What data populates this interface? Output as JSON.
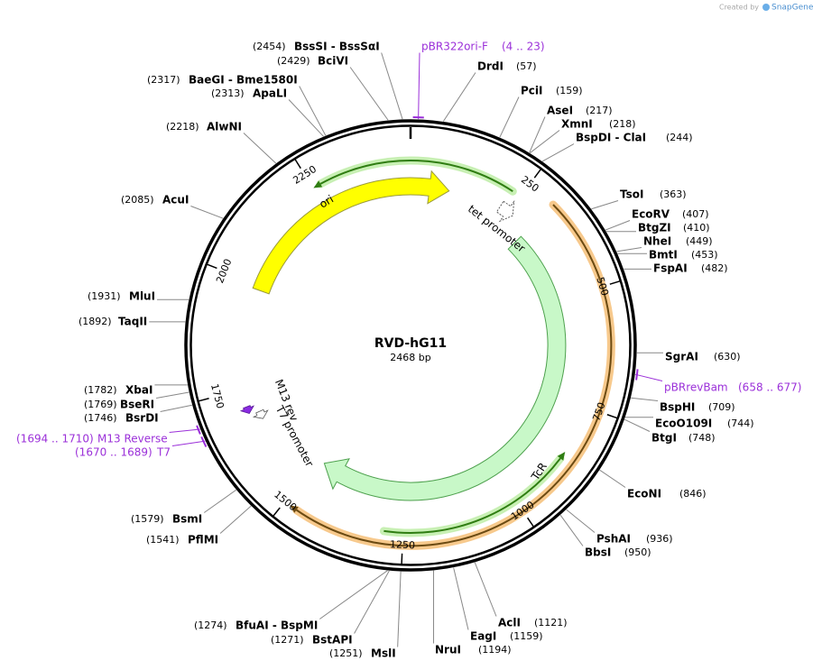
{
  "header": {
    "credit": "Created by",
    "brand": "SnapGene"
  },
  "plasmid": {
    "name": "RVD-hG11",
    "size": "2468 bp"
  },
  "ticks": [
    250,
    500,
    750,
    1000,
    1250,
    1500,
    1750,
    2000,
    2250
  ],
  "enzymes": [
    {
      "name": "BssSI  - BssSαI",
      "position": "(2454)"
    },
    {
      "name": "BciVI",
      "position": "(2429)"
    },
    {
      "name": "BaeGI  - Bme1580I",
      "position": "(2317)"
    },
    {
      "name": "ApaLI",
      "position": "(2313)"
    },
    {
      "name": "AlwNI",
      "position": "(2218)"
    },
    {
      "name": "AcuI",
      "position": "(2085)"
    },
    {
      "name": "MluI",
      "position": "(1931)"
    },
    {
      "name": "TaqII",
      "position": "(1892)"
    },
    {
      "name": "XbaI",
      "position": "(1782)"
    },
    {
      "name": "BseRI",
      "position": "(1769)"
    },
    {
      "name": "BsrDI",
      "position": "(1746)"
    },
    {
      "name": "BsmI",
      "position": "(1579)"
    },
    {
      "name": "PflMI",
      "position": "(1541)"
    },
    {
      "name": "BfuAI  - BspMI",
      "position": "(1274)"
    },
    {
      "name": "BstAPI",
      "position": "(1271)"
    },
    {
      "name": "MslI",
      "position": "(1251)"
    },
    {
      "name": "DrdI",
      "position": "(57)"
    },
    {
      "name": "PciI",
      "position": "(159)"
    },
    {
      "name": "AseI",
      "position": "(217)"
    },
    {
      "name": "XmnI",
      "position": "(218)"
    },
    {
      "name": "BspDI  - ClaI",
      "position": "(244)"
    },
    {
      "name": "TsoI",
      "position": "(363)"
    },
    {
      "name": "EcoRV",
      "position": "(407)"
    },
    {
      "name": "BtgZI",
      "position": "(410)"
    },
    {
      "name": "NheI",
      "position": "(449)"
    },
    {
      "name": "BmtI",
      "position": "(453)"
    },
    {
      "name": "FspAI",
      "position": "(482)"
    },
    {
      "name": "SgrAI",
      "position": "(630)"
    },
    {
      "name": "BspHI",
      "position": "(709)"
    },
    {
      "name": "EcoO109I",
      "position": "(744)"
    },
    {
      "name": "BtgI",
      "position": "(748)"
    },
    {
      "name": "EcoNI",
      "position": "(846)"
    },
    {
      "name": "PshAI",
      "position": "(936)"
    },
    {
      "name": "BbsI",
      "position": "(950)"
    },
    {
      "name": "AclI",
      "position": "(1121)"
    },
    {
      "name": "EagI",
      "position": "(1159)"
    },
    {
      "name": "NruI",
      "position": "(1194)"
    }
  ],
  "primers": [
    {
      "name": "pBR322ori-F",
      "range": "(4 .. 23)"
    },
    {
      "name": "pBRrevBam",
      "range": "(658 .. 677)"
    },
    {
      "name": "M13 Reverse",
      "range": "(1694 .. 1710)"
    },
    {
      "name": "T7",
      "range": "(1670 .. 1689)"
    }
  ],
  "features": [
    {
      "label": "ori"
    },
    {
      "label": "TcR"
    },
    {
      "label": "tet promoter"
    },
    {
      "label": "M13 rev"
    },
    {
      "label": "T7 promoter"
    }
  ]
}
